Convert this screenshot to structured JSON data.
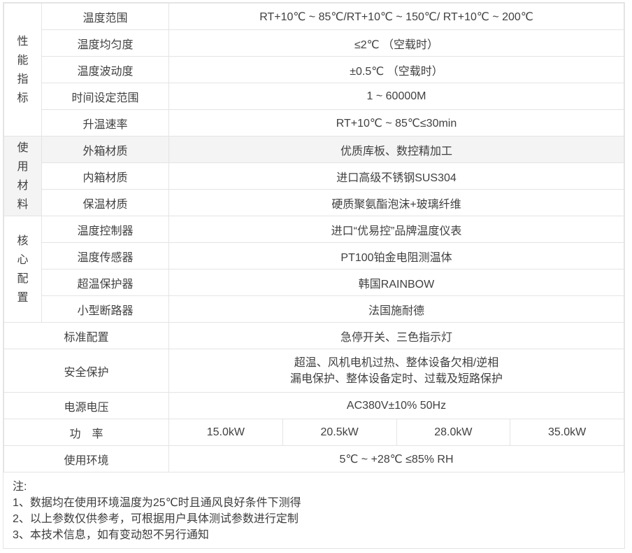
{
  "colors": {
    "border": "#e4e4e4",
    "text": "#404040",
    "highlight_row_bg": "#f4f4f4"
  },
  "table": {
    "groups": {
      "performance": {
        "label": "性能指标"
      },
      "materials": {
        "label": "使用材料"
      },
      "core": {
        "label": "核心配置"
      }
    },
    "rows": {
      "temp_range": {
        "label": "温度范围",
        "value": "RT+10℃ ~ 85℃/RT+10℃ ~ 150℃/ RT+10℃ ~ 200℃"
      },
      "temp_uniformity": {
        "label": "温度均匀度",
        "value": "≤2℃ （空载时）"
      },
      "temp_fluctuation": {
        "label": "温度波动度",
        "value": "±0.5℃ （空载时）"
      },
      "time_setting_range": {
        "label": "时间设定范围",
        "value": "1 ~ 60000M"
      },
      "heating_rate": {
        "label": "升温速率",
        "value": "RT+10℃ ~ 85℃≤30min"
      },
      "outer_box_material": {
        "label": "外箱材质",
        "value": "优质库板、数控精加工"
      },
      "inner_box_material": {
        "label": "内箱材质",
        "value": "进口高级不锈钢SUS304"
      },
      "insulation_material": {
        "label": "保温材质",
        "value": "硬质聚氨酯泡沫+玻璃纤维"
      },
      "temp_controller": {
        "label": "温度控制器",
        "value": "进口“优易控”品牌温度仪表"
      },
      "temp_sensor": {
        "label": "温度传感器",
        "value": "PT100铂金电阻测温体"
      },
      "overtemp_protector": {
        "label": "超温保护器",
        "value": "韩国RAINBOW"
      },
      "mini_circuit_breaker": {
        "label": "小型断路器",
        "value": "法国施耐德"
      },
      "standard_config": {
        "label": "标准配置",
        "value": "急停开关、三色指示灯"
      },
      "safety_protection": {
        "label": "安全保护",
        "value_line1": "超温、风机电机过热、整体设备欠相/逆相",
        "value_line2": "漏电保护、整体设备定时、过载及短路保护"
      },
      "power_supply": {
        "label": "电源电压",
        "value": "AC380V±10% 50Hz"
      },
      "power": {
        "label": "功　率",
        "values": [
          "15.0kW",
          "20.5kW",
          "28.0kW",
          "35.0kW"
        ]
      },
      "environment": {
        "label": "使用环境",
        "value": "5℃ ~ +28℃ ≤85% RH"
      }
    }
  },
  "notes": {
    "title": "注:",
    "items": [
      "1、数据均在使用环境温度为25℃时且通风良好条件下测得",
      "2、以上参数仅供参考，可根据用户具体测试参数进行定制",
      "3、本技术信息，如有变动恕不另行通知"
    ]
  }
}
